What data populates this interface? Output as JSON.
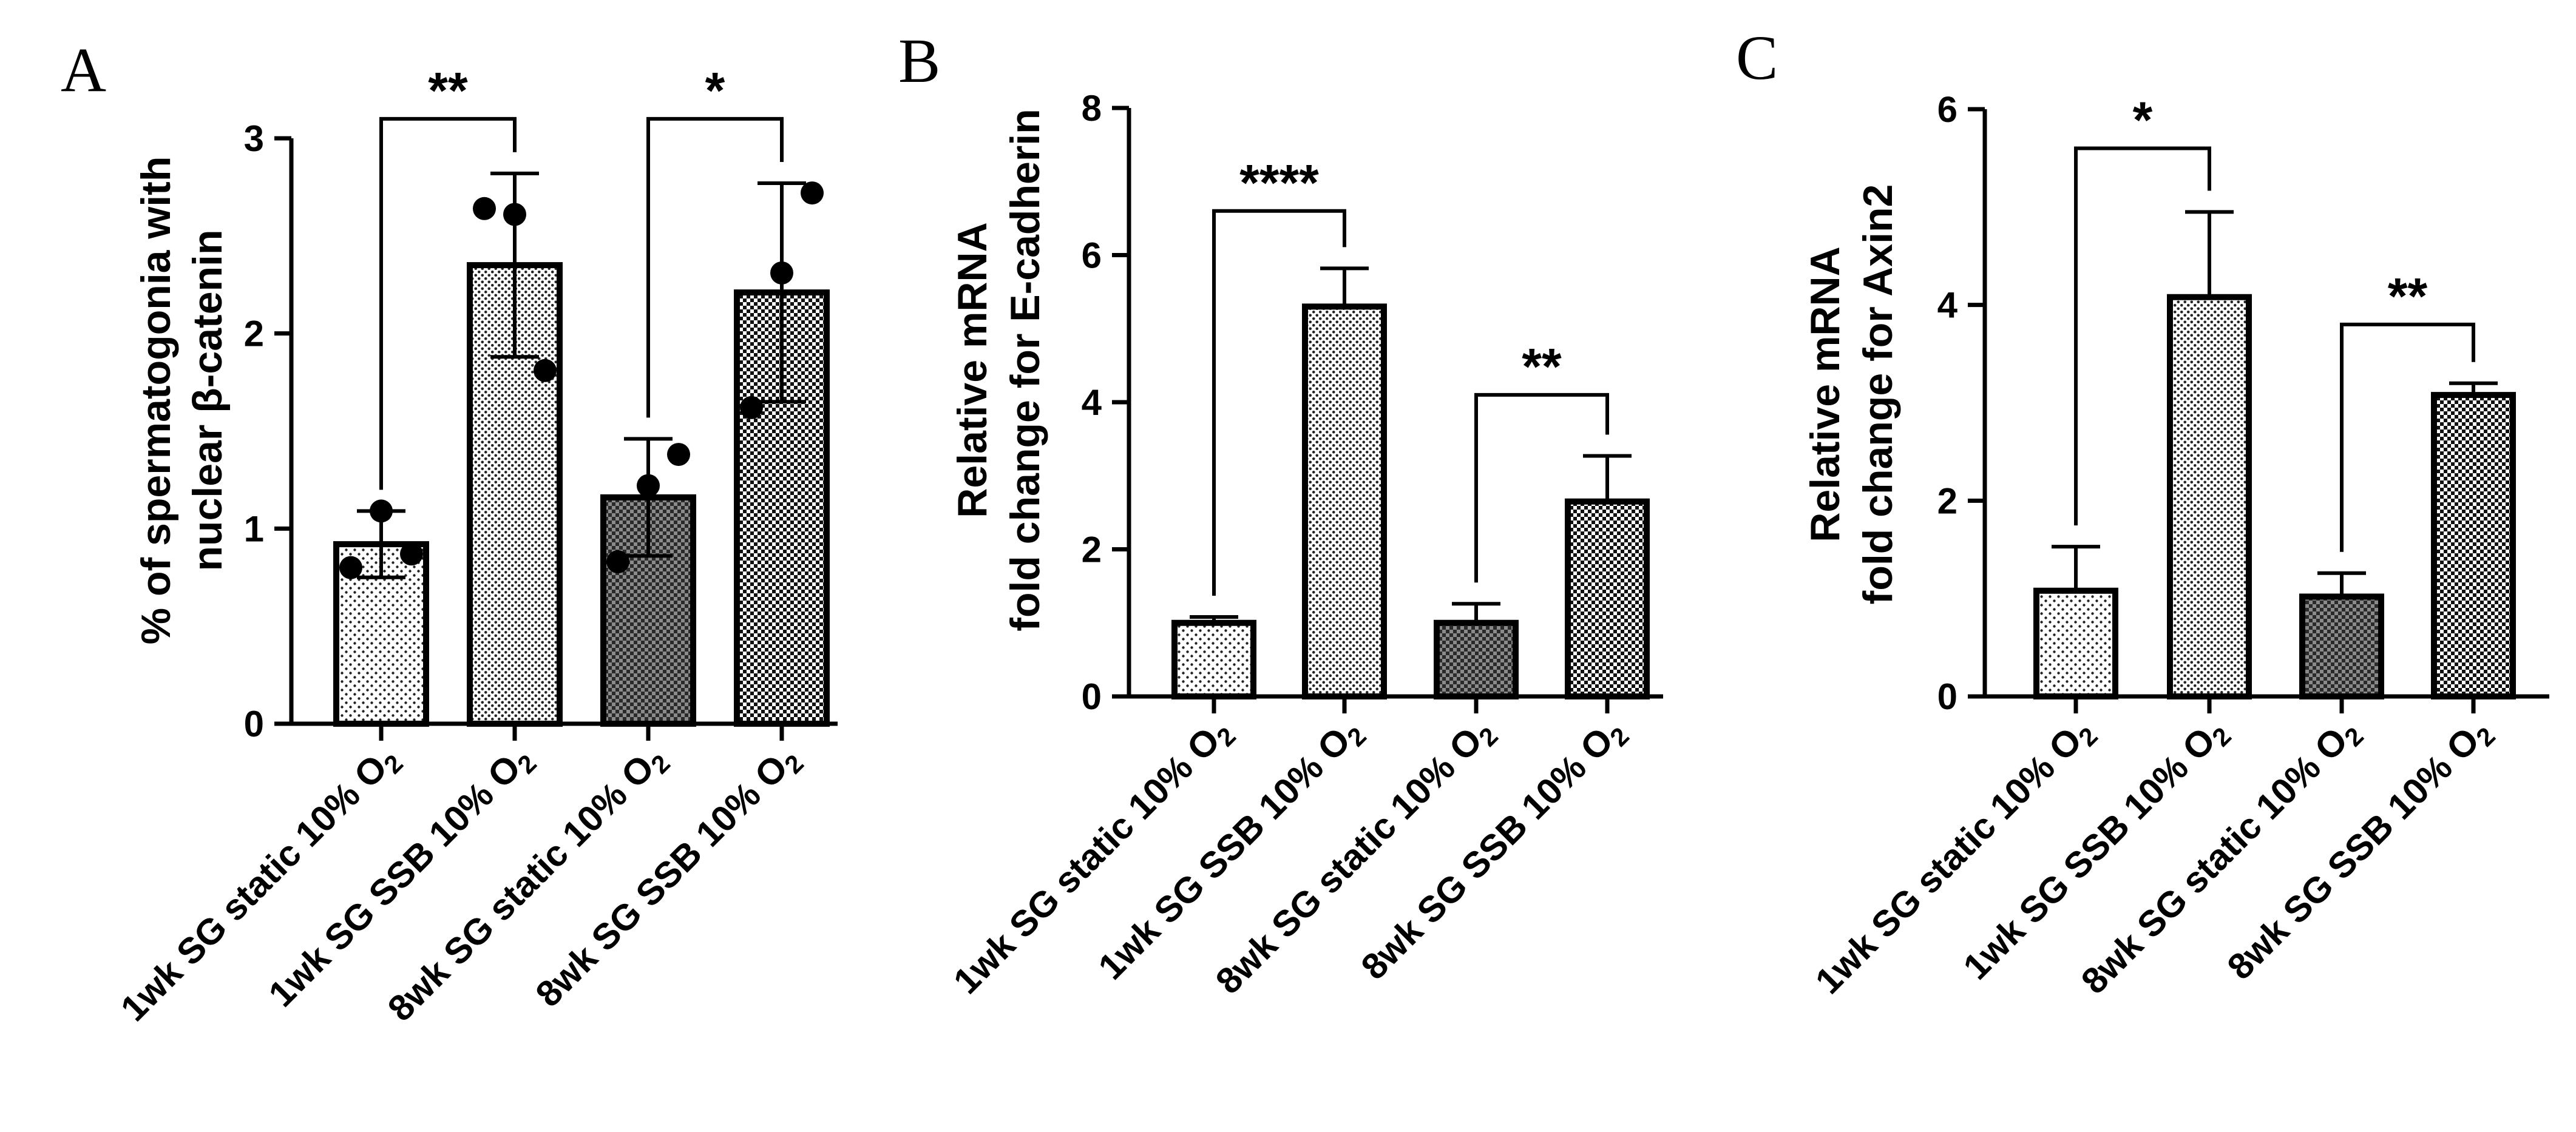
{
  "figure": {
    "patterns": {
      "static": "light-dots",
      "ssb": "checker"
    }
  },
  "chart_data": [
    {
      "panel": "A",
      "type": "bar",
      "ylabel_lines": [
        "% of spermatogonia with",
        "nuclear β-catenin"
      ],
      "ylim": [
        0,
        3
      ],
      "yticks": [
        0,
        1,
        2,
        3
      ],
      "categories": [
        {
          "prefix": "1wk SG static 10% O",
          "sub": "2"
        },
        {
          "prefix": "1wk SG SSB 10% O",
          "sub": "2"
        },
        {
          "prefix": "8wk SG static 10% O",
          "sub": "2"
        },
        {
          "prefix": "8wk SG SSB 10% O",
          "sub": "2"
        }
      ],
      "patterns": [
        "light-dots",
        "dense-dots",
        "medium-checker",
        "checker"
      ],
      "values": [
        0.92,
        2.35,
        1.16,
        2.21
      ],
      "err_up": [
        0.17,
        0.47,
        0.3,
        0.56
      ],
      "err_down": [
        0.17,
        0.47,
        0.3,
        0.56
      ],
      "points": [
        [
          0.8,
          1.09,
          0.87
        ],
        [
          2.64,
          2.61,
          1.81
        ],
        [
          0.83,
          1.22,
          1.38
        ],
        [
          1.62,
          2.31,
          2.72
        ]
      ],
      "significance": [
        {
          "from": 0,
          "to": 1,
          "label": "**",
          "y": 3.1
        },
        {
          "from": 2,
          "to": 3,
          "label": "*",
          "y": 3.1
        }
      ]
    },
    {
      "panel": "B",
      "type": "bar",
      "ylabel_lines": [
        "Relative mRNA",
        "fold change for E-cadherin"
      ],
      "ylim": [
        0,
        8
      ],
      "yticks": [
        0,
        2,
        4,
        6,
        8
      ],
      "categories": [
        {
          "prefix": "1wk SG static 10% O",
          "sub": "2"
        },
        {
          "prefix": "1wk SG SSB 10% O",
          "sub": "2"
        },
        {
          "prefix": "8wk SG static 10% O",
          "sub": "2"
        },
        {
          "prefix": "8wk SG SSB 10% O",
          "sub": "2"
        }
      ],
      "patterns": [
        "light-dots",
        "dense-dots",
        "medium-checker",
        "checker"
      ],
      "values": [
        1.0,
        5.3,
        1.0,
        2.65
      ],
      "err_up": [
        0.08,
        0.52,
        0.26,
        0.62
      ],
      "err_down": [
        0,
        0,
        0,
        0
      ],
      "points": [],
      "significance": [
        {
          "from": 0,
          "to": 1,
          "label": "****",
          "y": 6.6
        },
        {
          "from": 2,
          "to": 3,
          "label": "**",
          "y": 4.1
        }
      ]
    },
    {
      "panel": "C",
      "type": "bar",
      "ylabel_lines": [
        "Relative mRNA",
        "fold change for Axin2"
      ],
      "ylim": [
        0,
        6
      ],
      "yticks": [
        0,
        2,
        4,
        6
      ],
      "categories": [
        {
          "prefix": "1wk SG static 10% O",
          "sub": "2"
        },
        {
          "prefix": "1wk SG SSB 10% O",
          "sub": "2"
        },
        {
          "prefix": "8wk SG static 10% O",
          "sub": "2"
        },
        {
          "prefix": "8wk SG SSB 10% O",
          "sub": "2"
        }
      ],
      "patterns": [
        "light-dots",
        "dense-dots",
        "medium-checker",
        "checker"
      ],
      "values": [
        1.08,
        4.08,
        1.02,
        3.08
      ],
      "err_up": [
        0.45,
        0.87,
        0.24,
        0.12
      ],
      "err_down": [
        0,
        0,
        0,
        0
      ],
      "points": [],
      "significance": [
        {
          "from": 0,
          "to": 1,
          "label": "*",
          "y": 5.6
        },
        {
          "from": 2,
          "to": 3,
          "label": "**",
          "y": 3.8
        }
      ]
    }
  ]
}
